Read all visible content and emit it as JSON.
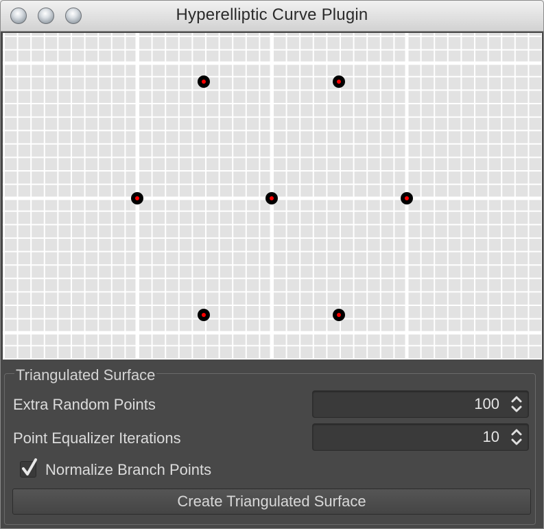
{
  "window": {
    "title": "Hyperelliptic Curve Plugin",
    "controls": [
      "close-icon",
      "minimize-icon",
      "zoom-icon"
    ]
  },
  "canvas": {
    "grid_background": "#e2e2e2",
    "grid_line_color": "#ffffff",
    "point_outer_color": "#000000",
    "point_inner_color": "#ff0000"
  },
  "panel": {
    "group_title": "Triangulated Surface",
    "extra_random_points": {
      "label": "Extra Random Points",
      "value": "100"
    },
    "point_equalizer_iterations": {
      "label": "Point Equalizer Iterations",
      "value": "10"
    },
    "normalize_branch_points": {
      "label": "Normalize Branch Points",
      "checked": true
    },
    "create_button_label": "Create Triangulated Surface"
  }
}
